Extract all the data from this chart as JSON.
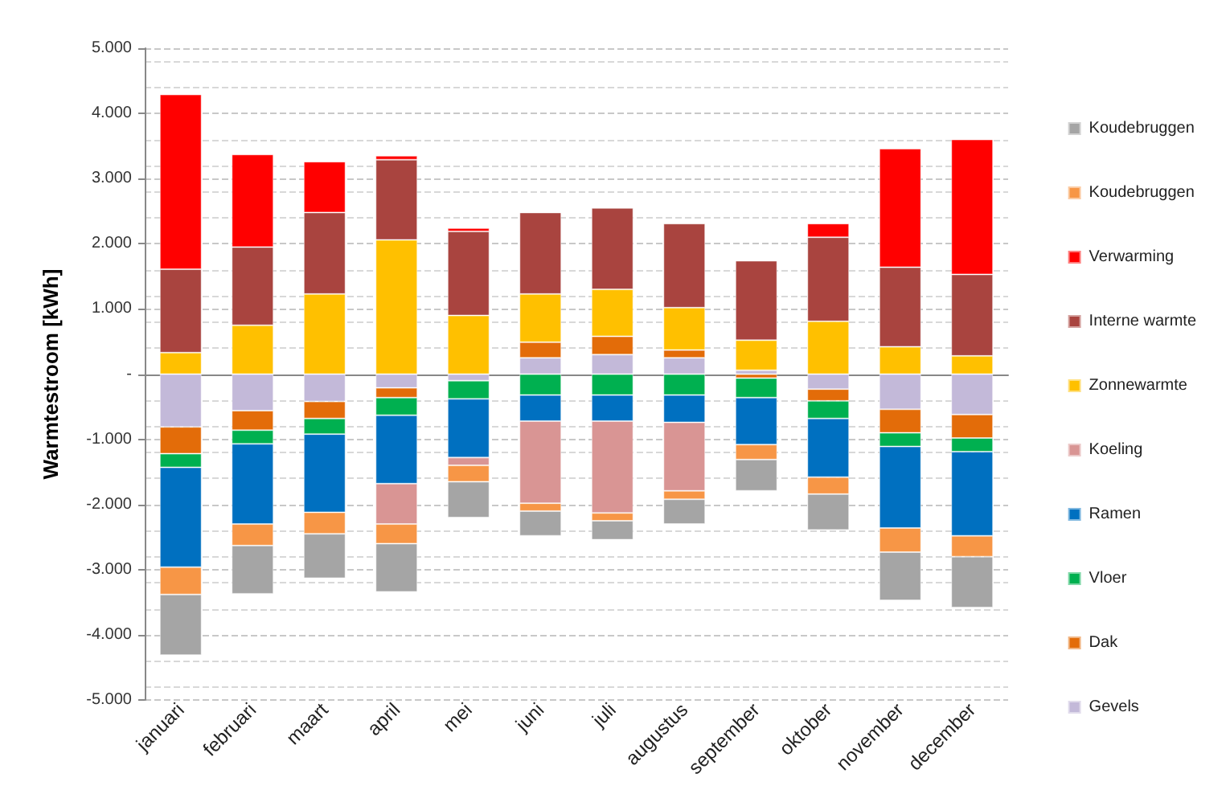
{
  "chart_data": {
    "type": "bar",
    "stacked": true,
    "ylabel": "Warmtestroom [kWh]",
    "grid": "y",
    "legend": "right",
    "ylim": [
      -5000,
      5000
    ],
    "yticks": [
      {
        "value": -5000,
        "label": "-5.000"
      },
      {
        "value": -4000,
        "label": "-4.000"
      },
      {
        "value": -3000,
        "label": "-3.000"
      },
      {
        "value": -2000,
        "label": "-2.000"
      },
      {
        "value": -1000,
        "label": "-1.000"
      },
      {
        "value": 0,
        "label": "-"
      },
      {
        "value": 1000,
        "label": "1.000"
      },
      {
        "value": 2000,
        "label": "2.000"
      },
      {
        "value": 3000,
        "label": "3.000"
      },
      {
        "value": 4000,
        "label": "4.000"
      },
      {
        "value": 5000,
        "label": "5.000"
      }
    ],
    "categories": [
      "januari",
      "februari",
      "maart",
      "april",
      "mei",
      "juni",
      "juli",
      "augustus",
      "september",
      "oktober",
      "november",
      "december"
    ],
    "series": [
      {
        "name": "Gevels",
        "color": "#c3b9d9",
        "values": [
          -810,
          -560,
          -420,
          -210,
          -100,
          250,
          300,
          250,
          60,
          -230,
          -540,
          -620
        ]
      },
      {
        "name": "Dak",
        "color": "#e36c09",
        "values": [
          -410,
          -300,
          -260,
          -150,
          null,
          240,
          280,
          120,
          -60,
          -180,
          -360,
          -360
        ]
      },
      {
        "name": "Vloer",
        "color": "#00b050",
        "values": [
          -210,
          -210,
          -240,
          -270,
          -280,
          -320,
          -320,
          -320,
          -300,
          -270,
          -210,
          -210
        ]
      },
      {
        "name": "Ramen",
        "color": "#0070c0",
        "values": [
          -1530,
          -1230,
          -1200,
          -1050,
          -900,
          -400,
          -400,
          -420,
          -720,
          -900,
          -1250,
          -1290
        ]
      },
      {
        "name": "Koeling",
        "color": "#d99594",
        "values": [
          null,
          null,
          null,
          -620,
          -120,
          -1260,
          -1410,
          -1050,
          null,
          null,
          null,
          null
        ]
      },
      {
        "name": "Zonnewarmte",
        "color": "#ffc000",
        "values": [
          330,
          750,
          1230,
          2060,
          900,
          740,
          720,
          650,
          460,
          810,
          420,
          280
        ]
      },
      {
        "name": "Interne warmte",
        "color": "#a9443f",
        "values": [
          1280,
          1200,
          1250,
          1230,
          1290,
          1250,
          1250,
          1290,
          1220,
          1290,
          1220,
          1250
        ]
      },
      {
        "name": "Verwarming",
        "color": "#ff0000",
        "values": [
          2680,
          1420,
          780,
          60,
          50,
          null,
          null,
          null,
          null,
          210,
          1820,
          2070
        ]
      },
      {
        "name": "Koudebruggen",
        "color": "#f79646",
        "values": [
          -420,
          -330,
          -330,
          -300,
          -250,
          -120,
          -120,
          -130,
          -230,
          -260,
          -370,
          -320
        ]
      },
      {
        "name": "Koudebruggen",
        "color": "#a5a5a5",
        "values": [
          -930,
          -740,
          -680,
          -740,
          -550,
          -380,
          -290,
          -380,
          -480,
          -550,
          -740,
          -780
        ]
      }
    ]
  }
}
